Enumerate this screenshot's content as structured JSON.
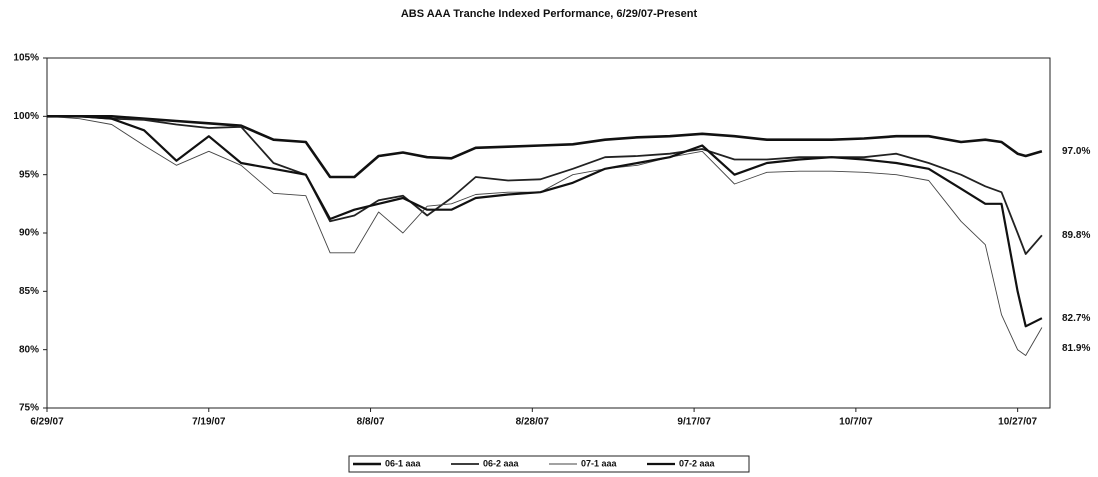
{
  "chart_data": {
    "type": "line",
    "title": "ABS AAA Tranche Indexed Performance, 6/29/07-Present",
    "x": [
      "6/29/07",
      "7/3/07",
      "7/7/07",
      "7/11/07",
      "7/15/07",
      "7/19/07",
      "7/23/07",
      "7/27/07",
      "7/31/07",
      "8/3/07",
      "8/6/07",
      "8/9/07",
      "8/12/07",
      "8/15/07",
      "8/18/07",
      "8/21/07",
      "8/25/07",
      "8/29/07",
      "9/2/07",
      "9/6/07",
      "9/10/07",
      "9/14/07",
      "9/18/07",
      "9/22/07",
      "9/26/07",
      "9/30/07",
      "10/4/07",
      "10/8/07",
      "10/12/07",
      "10/16/07",
      "10/20/07",
      "10/23/07",
      "10/25/07",
      "10/27/07",
      "10/28/07",
      "10/30/07"
    ],
    "series": [
      {
        "name": "06-1 aaa",
        "color": "#111111",
        "line_width": 2.6,
        "values": [
          100,
          100,
          100,
          99.8,
          99.6,
          99.4,
          99.2,
          98,
          97.8,
          94.8,
          94.8,
          96.6,
          96.9,
          96.5,
          96.4,
          97.3,
          97.4,
          97.5,
          97.6,
          98,
          98.2,
          98.3,
          98.5,
          98.3,
          98,
          98,
          98,
          98.1,
          98.3,
          98.3,
          97.8,
          98,
          97.8,
          96.8,
          96.6,
          97.0
        ],
        "value_labels": [
          null,
          null,
          null,
          null,
          null,
          null,
          null,
          null,
          null,
          null,
          null,
          null,
          null,
          null,
          null,
          null,
          null,
          null,
          null,
          null,
          null,
          null,
          null,
          null,
          null,
          null,
          null,
          null,
          null,
          null,
          null,
          null,
          null,
          null,
          null,
          "97.0%"
        ]
      },
      {
        "name": "06-2 aaa",
        "color": "#222222",
        "line_width": 1.8,
        "values": [
          100,
          100,
          99.8,
          99.7,
          99.3,
          99,
          99.1,
          96,
          95,
          91,
          91.5,
          92.8,
          93.2,
          91.5,
          93,
          94.8,
          94.5,
          94.6,
          95.5,
          96.5,
          96.6,
          96.8,
          97.2,
          96.3,
          96.3,
          96.5,
          96.5,
          96.5,
          96.8,
          96,
          95,
          94,
          93.5,
          90,
          88.2,
          89.8
        ],
        "value_labels": [
          null,
          null,
          null,
          null,
          null,
          null,
          null,
          null,
          null,
          null,
          null,
          null,
          null,
          null,
          null,
          null,
          null,
          null,
          null,
          null,
          null,
          null,
          null,
          null,
          null,
          null,
          null,
          null,
          null,
          null,
          null,
          null,
          null,
          null,
          null,
          "89.8%"
        ]
      },
      {
        "name": "07-1 aaa",
        "color": "#444444",
        "line_width": 0.9,
        "values": [
          100,
          99.8,
          99.3,
          97.5,
          95.8,
          97,
          95.8,
          93.4,
          93.2,
          88.3,
          88.3,
          91.8,
          90,
          92.3,
          92.5,
          93.3,
          93.5,
          93.5,
          95,
          95.5,
          95.8,
          96.5,
          97,
          94.2,
          95.2,
          95.3,
          95.3,
          95.2,
          95,
          94.5,
          91,
          89,
          83,
          80,
          79.5,
          81.9
        ],
        "value_labels": [
          null,
          null,
          null,
          null,
          null,
          null,
          null,
          null,
          null,
          null,
          null,
          null,
          null,
          null,
          null,
          null,
          null,
          null,
          null,
          null,
          null,
          null,
          null,
          null,
          null,
          null,
          null,
          null,
          null,
          null,
          null,
          null,
          null,
          null,
          null,
          "81.9%"
        ]
      },
      {
        "name": "07-2 aaa",
        "color": "#111111",
        "line_width": 2.2,
        "values": [
          100,
          100,
          99.8,
          98.8,
          96.2,
          98.3,
          96,
          95.5,
          95,
          91.2,
          92,
          92.5,
          93,
          92,
          92,
          93,
          93.3,
          93.5,
          94.3,
          95.5,
          96,
          96.5,
          97.5,
          95,
          96,
          96.3,
          96.5,
          96.3,
          96,
          95.5,
          93.8,
          92.5,
          92.5,
          85,
          82,
          82.7
        ],
        "value_labels": [
          null,
          null,
          null,
          null,
          null,
          null,
          null,
          null,
          null,
          null,
          null,
          null,
          null,
          null,
          null,
          null,
          null,
          null,
          null,
          null,
          null,
          null,
          null,
          null,
          null,
          null,
          null,
          null,
          null,
          null,
          null,
          null,
          null,
          null,
          null,
          "82.7%"
        ]
      }
    ],
    "xlim": [
      "6/29/07",
      "10/31/07"
    ],
    "xticks": [
      "6/29/07",
      "7/19/07",
      "8/8/07",
      "8/28/07",
      "9/17/07",
      "10/7/07",
      "10/27/07"
    ],
    "ylim": [
      75,
      105
    ],
    "yticks": [
      {
        "value": 75,
        "label": "75%"
      },
      {
        "value": 80,
        "label": "80%"
      },
      {
        "value": 85,
        "label": "85%"
      },
      {
        "value": 90,
        "label": "90%"
      },
      {
        "value": 95,
        "label": "95%"
      },
      {
        "value": 100,
        "label": "100%"
      },
      {
        "value": 105,
        "label": "105%"
      }
    ],
    "grid": false,
    "legend": "bottom"
  }
}
